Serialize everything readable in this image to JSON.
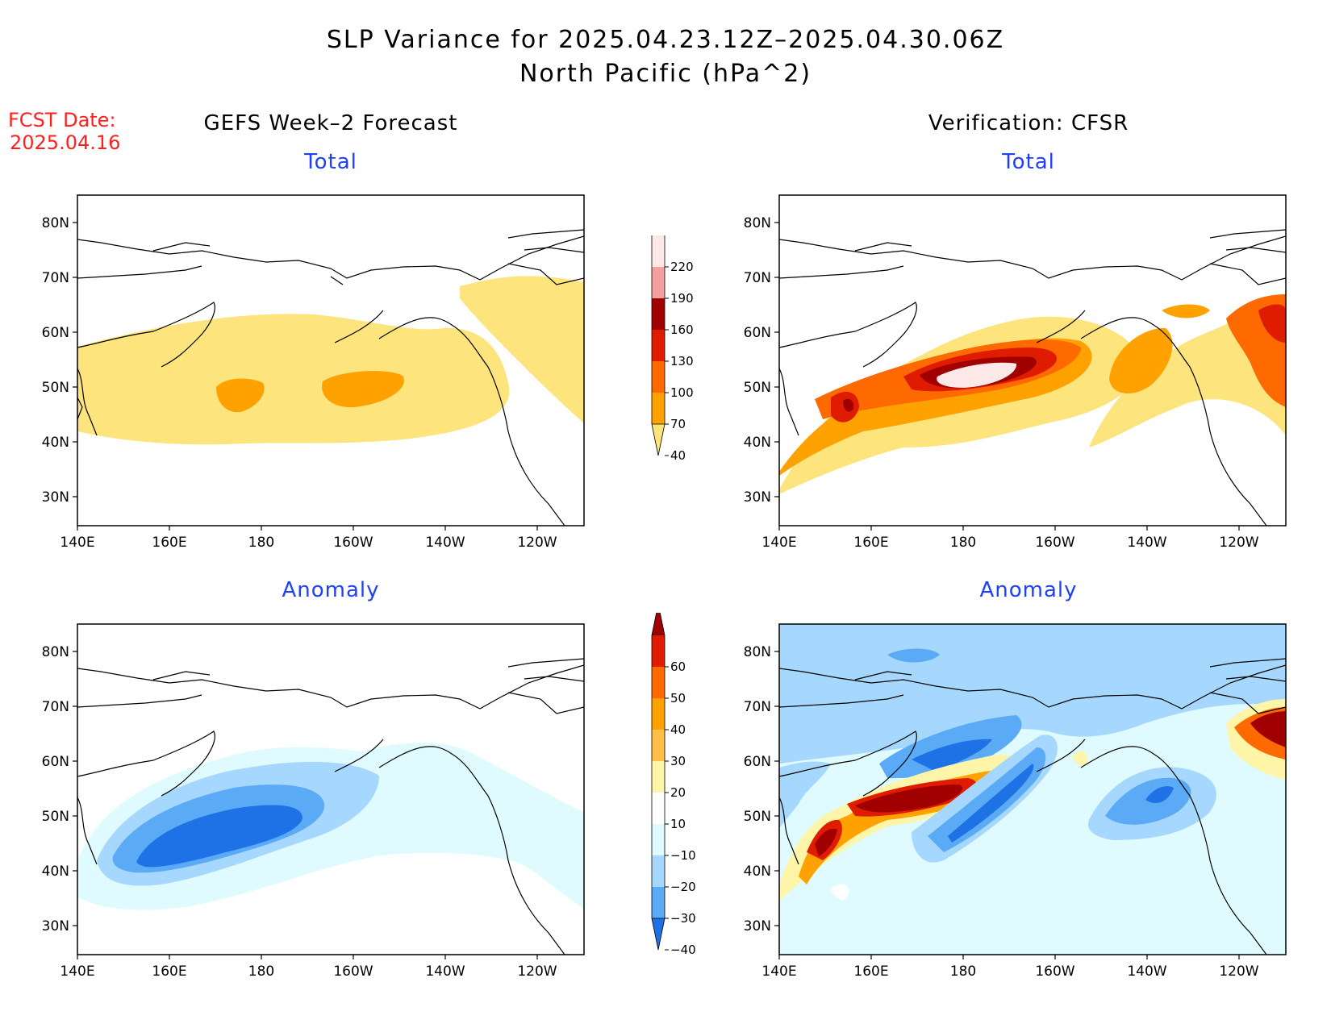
{
  "title": {
    "line1": "SLP Variance for 2025.04.23.12Z–2025.04.30.06Z",
    "line2": "North Pacific (hPa^2)"
  },
  "fcst_date": {
    "label": "FCST Date:",
    "value": "2025.04.16"
  },
  "columns": {
    "left": "GEFS Week–2 Forecast",
    "right": "Verification: CFSR"
  },
  "panels": {
    "top_left": "Total",
    "top_right": "Total",
    "bottom_left": "Anomaly",
    "bottom_right": "Anomaly"
  },
  "axes": {
    "lat_labels": [
      "80N",
      "70N",
      "60N",
      "50N",
      "40N",
      "30N"
    ],
    "lon_labels": [
      "140E",
      "160E",
      "180",
      "160W",
      "140W",
      "120W"
    ]
  },
  "colorbars": {
    "total": {
      "levels": [
        "220",
        "190",
        "160",
        "130",
        "100",
        "70",
        "40"
      ],
      "colors": [
        "#fde8e8",
        "#f4a0a0",
        "#a00000",
        "#e01c00",
        "#ff6a00",
        "#ffa200",
        "#fde47c"
      ]
    },
    "anomaly": {
      "levels": [
        "60",
        "50",
        "40",
        "30",
        "20",
        "10",
        "−10",
        "−20",
        "−30",
        "−40"
      ],
      "colors": [
        "#a00000",
        "#e01c00",
        "#ff6a00",
        "#ffa200",
        "#ffc04a",
        "#fff5a8",
        "#ffffff",
        "#e0fbff",
        "#a6d8ff",
        "#5aaaf5",
        "#1e72e6"
      ]
    }
  },
  "colors": {
    "title_red": "#ff2020",
    "panel_blue": "#1f3fff"
  }
}
